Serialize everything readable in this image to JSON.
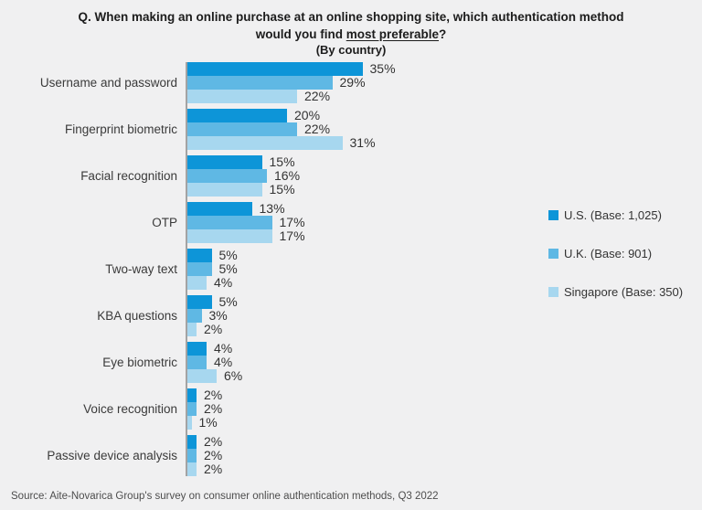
{
  "title": {
    "line1": "Q. When making an online purchase at an online shopping site, which authentication method",
    "line2_pre": "would you find ",
    "line2_underlined": "most preferable",
    "line2_post": "?",
    "subtitle": "(By country)"
  },
  "legend": {
    "position": "right",
    "items": [
      {
        "label": "U.S. (Base: 1,025)",
        "color": "#0d95d8"
      },
      {
        "label": "U.K. (Base: 901)",
        "color": "#5fb8e4"
      },
      {
        "label": "Singapore (Base: 350)",
        "color": "#a7d7ef"
      }
    ]
  },
  "chart_data": {
    "type": "bar",
    "orientation": "horizontal",
    "title": "Q. When making an online purchase at an online shopping site, which authentication method would you find most preferable? (By country)",
    "categories": [
      "Username and password",
      "Fingerprint biometric",
      "Facial recognition",
      "OTP",
      "Two-way text",
      "KBA questions",
      "Eye biometric",
      "Voice recognition",
      "Passive device analysis"
    ],
    "series": [
      {
        "name": "U.S. (Base: 1,025)",
        "color": "#0d95d8",
        "values": [
          35,
          20,
          15,
          13,
          5,
          5,
          4,
          2,
          2
        ]
      },
      {
        "name": "U.K. (Base: 901)",
        "color": "#5fb8e4",
        "values": [
          29,
          22,
          16,
          17,
          5,
          3,
          4,
          2,
          2
        ]
      },
      {
        "name": "Singapore (Base: 350)",
        "color": "#a7d7ef",
        "values": [
          22,
          31,
          15,
          17,
          4,
          2,
          6,
          1,
          2
        ]
      }
    ],
    "value_suffix": "%",
    "xlim": [
      0,
      38
    ],
    "grid": false,
    "value_labels": true,
    "legend_position": "right"
  },
  "source": "Source: Aite-Novarica Group's survey on consumer online authentication methods, Q3 2022",
  "colors": {
    "background": "#f0f0f1",
    "axis_line": "#a3a3a3",
    "text": "#333333",
    "title_text": "#1c1c1c"
  }
}
